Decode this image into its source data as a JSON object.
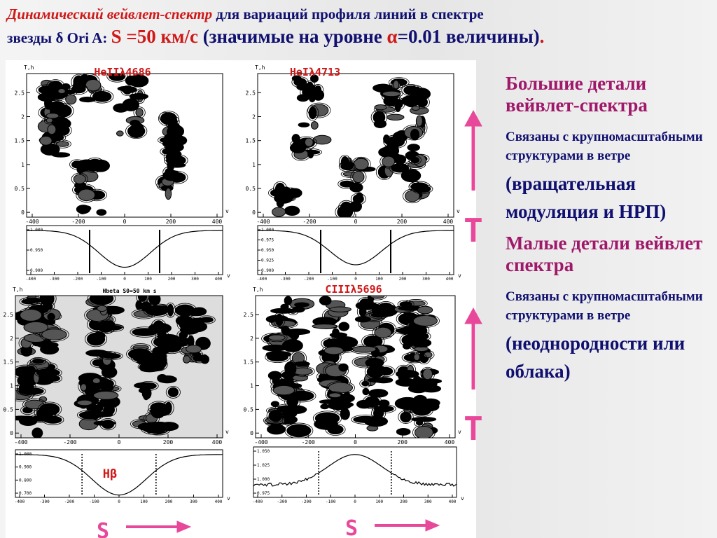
{
  "title": {
    "line1_red": "Динамический вейвлет-спектр",
    "line1_blue": " для вариаций профиля линий  в спектре",
    "line2_a": "звезды ",
    "delta": "δ",
    "line2_b": " Ori A: ",
    "s_value": "S =50 км/с",
    "line2_c": " (значимые на уровне ",
    "alpha": "α",
    "line2_d": "=0.01 величины)",
    "dot": "."
  },
  "panels": [
    {
      "label": "HeIIλ4686",
      "ylabel": "T,h",
      "xlabel": "v",
      "xticks": [
        "-400",
        "-200",
        "0",
        "200",
        "400"
      ],
      "yticks": [
        "0",
        "0.5",
        "1",
        "1.5",
        "2",
        "2.5"
      ],
      "profile_yticks": [
        "0.900",
        "0.950",
        "1.000"
      ],
      "profile_xticks": [
        "-400",
        "-300",
        "-200",
        "-100",
        "0",
        "100",
        "200",
        "300",
        "400"
      ],
      "profile_xlabel": "v"
    },
    {
      "label": "HeIλ4713",
      "ylabel": "T,h",
      "xlabel": "v",
      "xticks": [
        "-400",
        "-200",
        "0",
        "200",
        "400"
      ],
      "yticks": [
        "0",
        "0.5",
        "1",
        "1.5",
        "2",
        "2.5"
      ],
      "profile_yticks": [
        "0.900",
        "0.925",
        "0.950",
        "0.975",
        "1.000"
      ],
      "profile_xticks": [
        "-400",
        "-300",
        "-200",
        "-100",
        "0",
        "100",
        "200",
        "300",
        "400"
      ],
      "profile_xlabel": "v"
    },
    {
      "label": "Hbeta  S0=50 km s",
      "ylabel": "T,h",
      "xlabel": "v",
      "xticks": [
        "-400",
        "-200",
        "0",
        "200",
        "400"
      ],
      "yticks": [
        "0",
        "0.5",
        "1",
        "1.5",
        "2",
        "2.5"
      ],
      "profile_yticks": [
        "0.700",
        "0.800",
        "0.900",
        "1.000"
      ],
      "profile_xticks": [
        "-400",
        "-300",
        "-200",
        "-100",
        "0",
        "100",
        "200",
        "300",
        "400"
      ],
      "profile_xlabel": "v",
      "profile_label": "Hβ"
    },
    {
      "label": "CIIIλ5696",
      "ylabel": "T,h",
      "xlabel": "v",
      "xticks": [
        "-400",
        "-200",
        "0",
        "200",
        "400"
      ],
      "yticks": [
        "0",
        "0.5",
        "1",
        "1.5",
        "2",
        "2.5"
      ],
      "profile_yticks": [
        "0.975",
        "1.000",
        "1.025",
        "1.050"
      ],
      "profile_xticks": [
        "-400",
        "-300",
        "-200",
        "-100",
        "0",
        "100",
        "200",
        "300",
        "400"
      ],
      "profile_xlabel": "v"
    }
  ],
  "right": {
    "heading1": "Большие детали вейвлет-спектра",
    "text1": "Связаны с крупномасштабными структурами в ветре",
    "paren1": "(вращательная модуляция и НРП)",
    "heading2": "Малые детали вейвлет спектра",
    "text2": "Связаны с крупномасштабными структурами в ветре",
    "paren2": "(неоднородности или облака)"
  },
  "arrows": {
    "t_upper": "T",
    "t_lower": "T",
    "s_left": "S",
    "s_right": "S"
  }
}
